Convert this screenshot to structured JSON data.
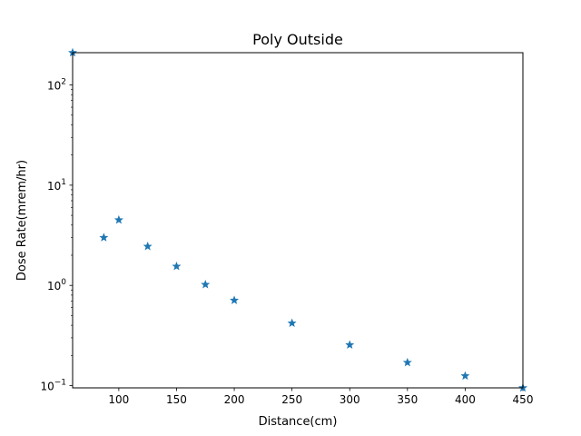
{
  "chart_data": {
    "type": "scatter",
    "title": "Poly Outside",
    "xlabel": "Distance(cm)",
    "ylabel": "Dose Rate(mrem/hr)",
    "xlim": [
      60,
      450
    ],
    "ylim": [
      0.095,
      210
    ],
    "yscale": "log",
    "grid": false,
    "marker": "star",
    "xticks": [
      100,
      150,
      200,
      250,
      300,
      350,
      400,
      450
    ],
    "yticks": [
      {
        "value": 0.1,
        "base": "10",
        "exp": "−1"
      },
      {
        "value": 1,
        "base": "10",
        "exp": "0"
      },
      {
        "value": 10,
        "base": "10",
        "exp": "1"
      },
      {
        "value": 100,
        "base": "10",
        "exp": "2"
      }
    ],
    "series": [
      {
        "color": "#1f77b4",
        "points": [
          {
            "x": 60,
            "y": 210
          },
          {
            "x": 87,
            "y": 3.0
          },
          {
            "x": 100,
            "y": 4.5
          },
          {
            "x": 125,
            "y": 2.45
          },
          {
            "x": 150,
            "y": 1.55
          },
          {
            "x": 175,
            "y": 1.02
          },
          {
            "x": 200,
            "y": 0.71
          },
          {
            "x": 250,
            "y": 0.42
          },
          {
            "x": 300,
            "y": 0.255
          },
          {
            "x": 350,
            "y": 0.17
          },
          {
            "x": 400,
            "y": 0.125
          },
          {
            "x": 450,
            "y": 0.095
          }
        ]
      }
    ]
  }
}
